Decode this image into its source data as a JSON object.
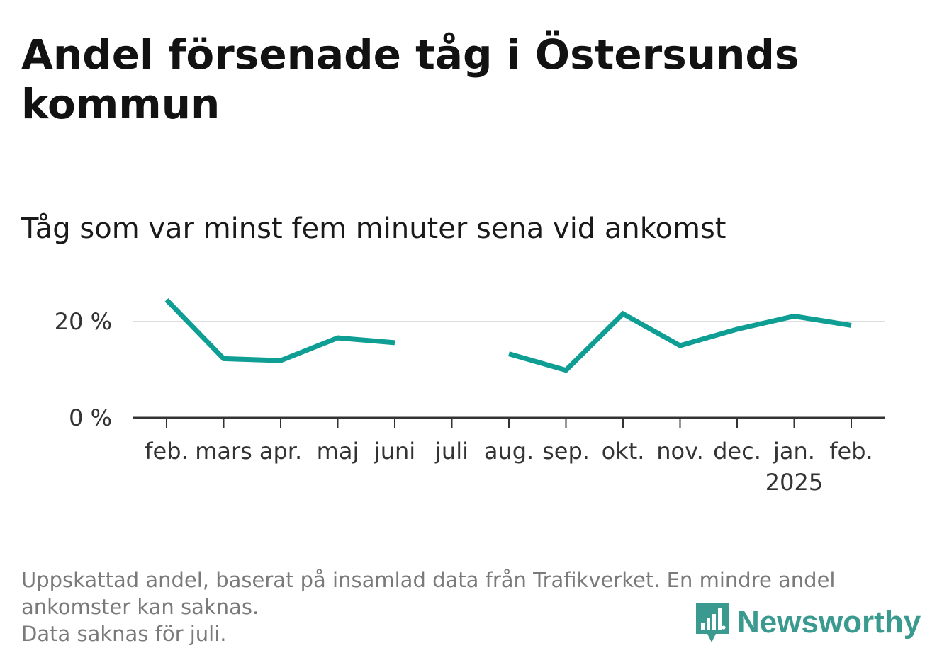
{
  "title": "Andel försenade tåg i Östersunds kommun",
  "subtitle": "Tåg som var minst fem minuter sena vid ankomst",
  "footer": {
    "line1": "Uppskattad andel, baserat på insamlad data från Trafikverket. En mindre andel",
    "line2": "ankomster kan saknas.",
    "line3": "Data saknas för juli."
  },
  "brand": {
    "name": "Newsworthy",
    "icon": "newsworthy-logo-icon",
    "color": "#3a9a8f"
  },
  "chart_data": {
    "type": "line",
    "title": "Andel försenade tåg i Östersunds kommun",
    "subtitle": "Tåg som var minst fem minuter sena vid ankomst",
    "categories": [
      "feb.",
      "mars",
      "apr.",
      "maj",
      "juni",
      "juli",
      "aug.",
      "sep.",
      "okt.",
      "nov.",
      "dec.",
      "jan.",
      "feb."
    ],
    "year_label": {
      "text": "2025",
      "category_index": 11
    },
    "series": [
      {
        "color": "#0e9e94",
        "values": [
          24.5,
          12.3,
          11.9,
          16.6,
          15.6,
          null,
          13.3,
          9.9,
          21.6,
          15.0,
          18.4,
          21.1,
          19.2
        ]
      }
    ],
    "yticks": [
      0,
      20
    ],
    "ytick_labels": [
      "0 %",
      "20 %"
    ],
    "ylim": [
      0,
      26
    ],
    "grid": true,
    "gap": "juli"
  }
}
